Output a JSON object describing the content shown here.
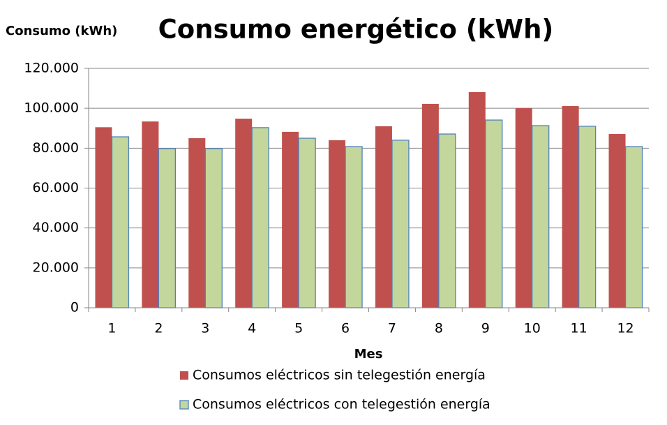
{
  "chart_data": {
    "type": "bar",
    "title": "Consumo energético (kWh)",
    "y_label": "Consumo (kWh)",
    "x_label": "Mes",
    "categories": [
      "1",
      "2",
      "3",
      "4",
      "5",
      "6",
      "7",
      "8",
      "9",
      "10",
      "11",
      "12"
    ],
    "series": [
      {
        "name": "Consumos eléctricos sin telegestión energía",
        "color": "#c0504d",
        "values": [
          90500,
          93400,
          85000,
          94800,
          88200,
          84000,
          91000,
          102200,
          108100,
          100100,
          101100,
          87100
        ]
      },
      {
        "name": "Consumos eléctricos con telegestión energía",
        "color": "#c3d69b",
        "values": [
          85700,
          79800,
          79800,
          90300,
          85000,
          80800,
          84000,
          87100,
          94100,
          91300,
          91000,
          80800
        ]
      }
    ],
    "ylim": [
      0,
      120000
    ],
    "yticks": [
      0,
      {
        "value": 20000,
        "label": "20.000"
      },
      {
        "value": 40000,
        "label": "40.000"
      },
      {
        "value": 60000,
        "label": "60.000"
      },
      {
        "value": 80000,
        "label": "80.000"
      },
      {
        "value": 100000,
        "label": "100.000"
      },
      {
        "value": 120000,
        "label": "120.000"
      }
    ],
    "grid": true
  }
}
